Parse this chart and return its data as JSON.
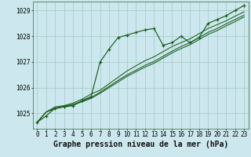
{
  "title": "Graphe pression niveau de la mer (hPa)",
  "background_color": "#cce8ee",
  "grid_color": "#aacccc",
  "line_color": "#1a5c1a",
  "ylim": [
    1024.4,
    1029.35
  ],
  "yticks": [
    1025,
    1026,
    1027,
    1028,
    1029
  ],
  "xlim": [
    -0.5,
    23.5
  ],
  "series": [
    [
      1024.65,
      1024.9,
      1025.2,
      1025.25,
      1025.3,
      1025.5,
      1025.65,
      1027.0,
      1027.5,
      1027.95,
      1028.05,
      1028.15,
      1028.25,
      1028.3,
      1027.65,
      1027.75,
      1028.0,
      1027.75,
      1027.95,
      1028.5,
      1028.65,
      1028.8,
      1029.0,
      1029.2
    ],
    [
      1024.65,
      1025.05,
      1025.25,
      1025.3,
      1025.4,
      1025.55,
      1025.75,
      1025.9,
      1026.15,
      1026.4,
      1026.65,
      1026.85,
      1027.05,
      1027.2,
      1027.4,
      1027.6,
      1027.75,
      1027.9,
      1028.1,
      1028.3,
      1028.45,
      1028.6,
      1028.78,
      1028.95
    ],
    [
      1024.65,
      1025.05,
      1025.2,
      1025.28,
      1025.35,
      1025.48,
      1025.62,
      1025.82,
      1026.05,
      1026.28,
      1026.5,
      1026.68,
      1026.87,
      1027.02,
      1027.22,
      1027.42,
      1027.6,
      1027.75,
      1027.95,
      1028.15,
      1028.3,
      1028.48,
      1028.65,
      1028.82
    ],
    [
      1024.65,
      1025.05,
      1025.18,
      1025.26,
      1025.32,
      1025.45,
      1025.58,
      1025.78,
      1026.0,
      1026.22,
      1026.44,
      1026.62,
      1026.8,
      1026.95,
      1027.15,
      1027.35,
      1027.52,
      1027.67,
      1027.87,
      1028.07,
      1028.22,
      1028.4,
      1028.57,
      1028.75
    ]
  ],
  "x_labels": [
    "0",
    "1",
    "2",
    "3",
    "4",
    "5",
    "6",
    "7",
    "8",
    "9",
    "10",
    "11",
    "12",
    "13",
    "14",
    "15",
    "16",
    "17",
    "18",
    "19",
    "20",
    "21",
    "22",
    "23"
  ],
  "title_fontsize": 7,
  "tick_fontsize": 5.5
}
